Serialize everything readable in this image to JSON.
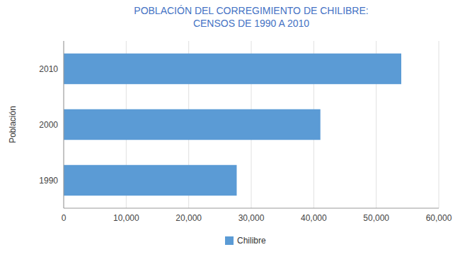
{
  "chart_data": {
    "type": "bar",
    "orientation": "horizontal",
    "title": "POBLACIÓN DEL CORREGIMIENTO DE CHILIBRE:\nCENSOS DE 1990 A 2010",
    "y_label": "Población",
    "categories": [
      "1990",
      "2000",
      "2010"
    ],
    "series": [
      {
        "name": "Chilibre",
        "color": "#5B9BD5",
        "values": [
          27677,
          41062,
          54000
        ]
      }
    ],
    "xlim": [
      0,
      60000
    ],
    "xticks": [
      0,
      {
        "value": 10000,
        "label": "10,000"
      },
      {
        "value": 20000,
        "label": "20,000"
      },
      {
        "value": 30000,
        "label": "30,000"
      },
      {
        "value": 40000,
        "label": "40,000"
      },
      {
        "value": 50000,
        "label": "50,000"
      },
      {
        "value": 60000,
        "label": "60,000"
      }
    ],
    "grid": true,
    "legend": "bottom",
    "title_color": "#4472C4"
  }
}
